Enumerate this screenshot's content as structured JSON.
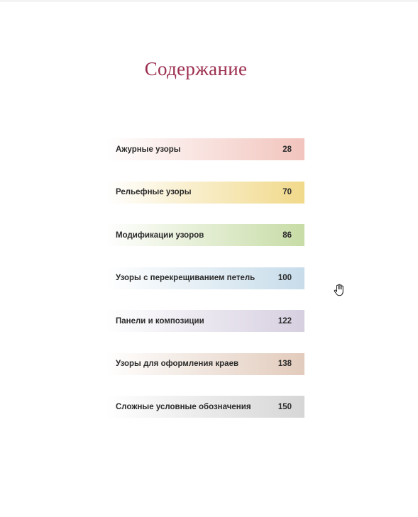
{
  "document": {
    "title": "Содержание",
    "title_color": "#9c2f4f"
  },
  "toc": [
    {
      "label": "Ажурные узоры",
      "page": "28",
      "color": "#f2c4bd"
    },
    {
      "label": "Рельефные узоры",
      "page": "70",
      "color": "#f1d98a"
    },
    {
      "label": "Модификации узоров",
      "page": "86",
      "color": "#c7dca6"
    },
    {
      "label": "Узоры с перекрещиванием петель",
      "page": "100",
      "color": "#c7dcea"
    },
    {
      "label": "Панели и композиции",
      "page": "122",
      "color": "#d6cfe0"
    },
    {
      "label": "Узоры для оформления краев",
      "page": "138",
      "color": "#e2cbbc"
    },
    {
      "label": "Сложные условные обозначения",
      "page": "150",
      "color": "#d6d6d6"
    }
  ],
  "cursor": {
    "icon": "hand-pointer-icon"
  }
}
